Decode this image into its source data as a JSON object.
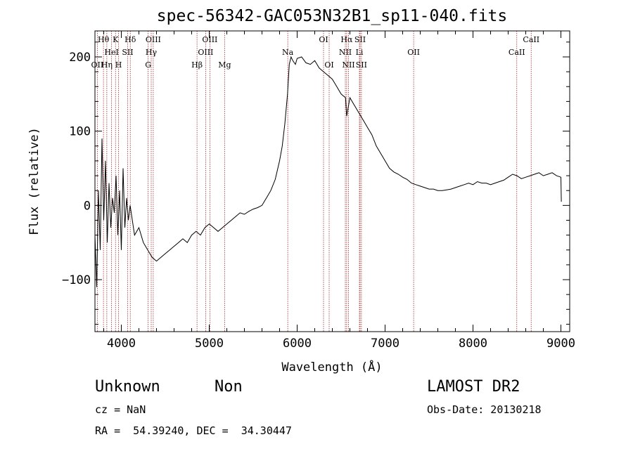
{
  "chart_data": {
    "type": "line",
    "title": "spec-56342-GAC053N32B1_sp11-040.fits",
    "xlabel": "Wavelength (Å)",
    "ylabel": "Flux (relative)",
    "xlim": [
      3700,
      9100
    ],
    "ylim": [
      -170,
      235
    ],
    "xticks": [
      4000,
      5000,
      6000,
      7000,
      8000,
      9000
    ],
    "yticks": [
      -100,
      0,
      100,
      200
    ],
    "series": [
      {
        "x": [
          3700,
          3720,
          3740,
          3760,
          3780,
          3800,
          3820,
          3840,
          3860,
          3880,
          3900,
          3920,
          3940,
          3960,
          3980,
          4000,
          4020,
          4040,
          4060,
          4080,
          4100,
          4150,
          4200,
          4250,
          4300,
          4350,
          4400,
          4450,
          4500,
          4550,
          4600,
          4650,
          4700,
          4750,
          4800,
          4850,
          4900,
          4950,
          5000,
          5050,
          5100,
          5150,
          5200,
          5250,
          5300,
          5350,
          5400,
          5450,
          5500,
          5550,
          5600,
          5650,
          5700,
          5750,
          5800,
          5830,
          5860,
          5890,
          5910,
          5930,
          5950,
          5980,
          6000,
          6050,
          6100,
          6150,
          6200,
          6250,
          6300,
          6350,
          6400,
          6450,
          6500,
          6550,
          6563,
          6600,
          6650,
          6700,
          6750,
          6800,
          6850,
          6900,
          6950,
          7000,
          7050,
          7100,
          7150,
          7200,
          7250,
          7300,
          7350,
          7400,
          7450,
          7500,
          7550,
          7600,
          7650,
          7700,
          7750,
          7800,
          7850,
          7900,
          7950,
          8000,
          8050,
          8100,
          8150,
          8200,
          8250,
          8300,
          8350,
          8400,
          8450,
          8500,
          8550,
          8600,
          8650,
          8700,
          8750,
          8800,
          8850,
          8900,
          8950,
          9000,
          9005
        ],
        "y": [
          -40,
          -110,
          20,
          -60,
          90,
          -20,
          60,
          -50,
          30,
          -30,
          10,
          -10,
          40,
          -40,
          20,
          -60,
          50,
          -30,
          10,
          -20,
          0,
          -40,
          -30,
          -50,
          -60,
          -70,
          -75,
          -70,
          -65,
          -60,
          -55,
          -50,
          -45,
          -50,
          -40,
          -35,
          -40,
          -30,
          -25,
          -30,
          -35,
          -30,
          -25,
          -20,
          -15,
          -10,
          -12,
          -8,
          -5,
          -3,
          0,
          10,
          20,
          35,
          60,
          80,
          110,
          150,
          190,
          200,
          195,
          190,
          198,
          200,
          192,
          190,
          195,
          185,
          180,
          175,
          170,
          160,
          150,
          145,
          120,
          145,
          135,
          125,
          115,
          105,
          95,
          80,
          70,
          60,
          50,
          45,
          42,
          38,
          35,
          30,
          28,
          26,
          24,
          22,
          22,
          20,
          20,
          21,
          22,
          24,
          26,
          28,
          30,
          28,
          32,
          30,
          30,
          28,
          30,
          32,
          34,
          38,
          42,
          40,
          36,
          38,
          40,
          42,
          44,
          40,
          42,
          44,
          40,
          38,
          5
        ]
      }
    ],
    "spectral_lines": [
      {
        "name": "Hθ",
        "wl": 3797,
        "row": 0
      },
      {
        "name": "OII",
        "wl": 3727,
        "row": 2
      },
      {
        "name": "HeI",
        "wl": 3889,
        "row": 1
      },
      {
        "name": "K",
        "wl": 3934,
        "row": 0
      },
      {
        "name": "Hη",
        "wl": 3835,
        "row": 2
      },
      {
        "name": "H",
        "wl": 3968,
        "row": 2
      },
      {
        "name": "SII",
        "wl": 4072,
        "row": 1
      },
      {
        "name": "Hδ",
        "wl": 4102,
        "row": 0
      },
      {
        "name": "OIII",
        "wl": 4363,
        "row": 0
      },
      {
        "name": "Hγ",
        "wl": 4340,
        "row": 1
      },
      {
        "name": "G",
        "wl": 4305,
        "row": 2
      },
      {
        "name": "OIII",
        "wl": 5007,
        "row": 0
      },
      {
        "name": "OIII",
        "wl": 4959,
        "row": 1
      },
      {
        "name": "Hβ",
        "wl": 4861,
        "row": 2
      },
      {
        "name": "Mg",
        "wl": 5175,
        "row": 2
      },
      {
        "name": "Na",
        "wl": 5893,
        "row": 1
      },
      {
        "name": "OI",
        "wl": 6300,
        "row": 0
      },
      {
        "name": "OI",
        "wl": 6364,
        "row": 2
      },
      {
        "name": "Hα",
        "wl": 6563,
        "row": 0
      },
      {
        "name": "SII",
        "wl": 6716,
        "row": 0
      },
      {
        "name": "NII",
        "wl": 6548,
        "row": 1
      },
      {
        "name": "Li",
        "wl": 6708,
        "row": 1
      },
      {
        "name": "NII",
        "wl": 6584,
        "row": 2
      },
      {
        "name": "SII",
        "wl": 6731,
        "row": 2
      },
      {
        "name": "OII",
        "wl": 7325,
        "row": 1
      },
      {
        "name": "CaII",
        "wl": 8662,
        "row": 0
      },
      {
        "name": "CaII",
        "wl": 8498,
        "row": 1
      }
    ]
  },
  "info": {
    "class": "Unknown",
    "subclass": "Non",
    "survey": "LAMOST DR2",
    "cz": "cz = NaN",
    "obs_date": "Obs-Date: 20130218",
    "coords": "RA =  54.39240, DEC =  34.30447"
  }
}
